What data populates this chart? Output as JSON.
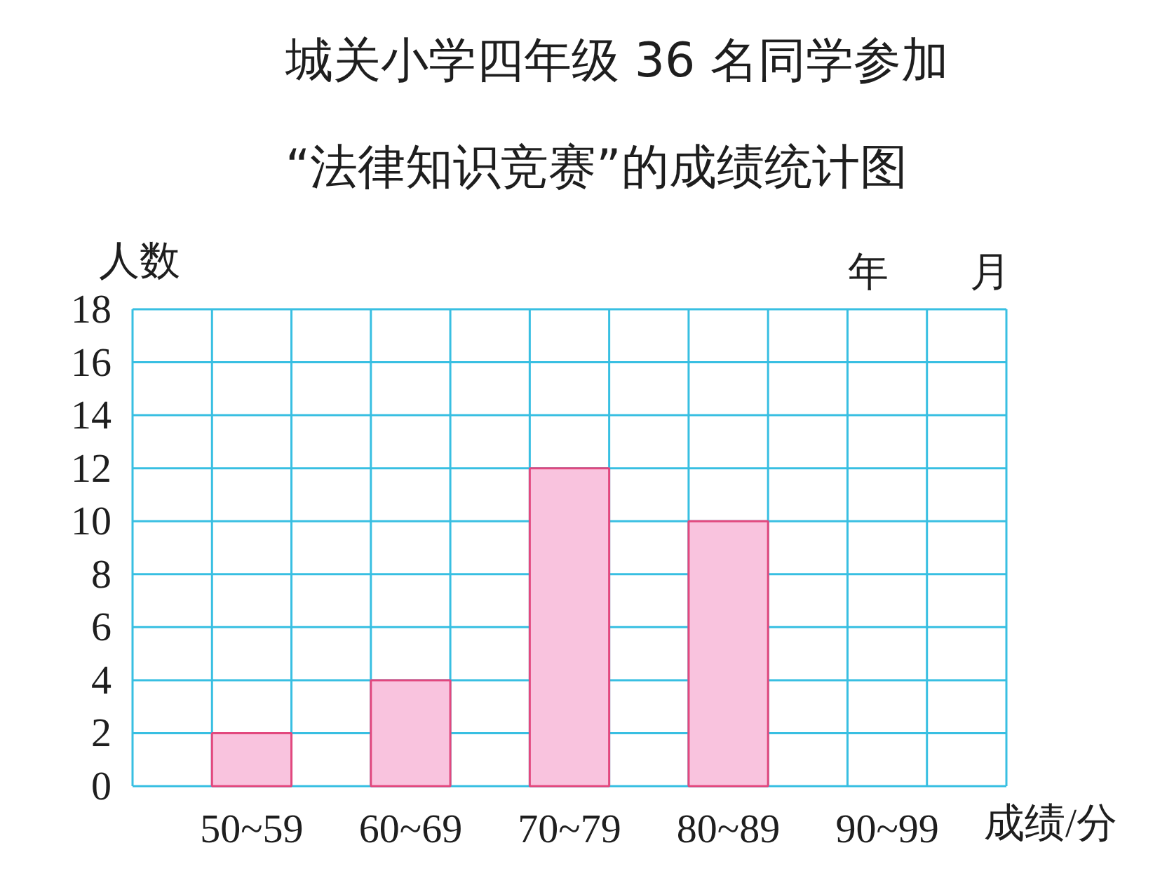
{
  "chart_data": {
    "type": "bar",
    "title": "城关小学四年级 36 名同学参加\n“法律知识竞赛”的成绩统计图",
    "xlabel": "成绩/分",
    "ylabel": "人数",
    "categories": [
      "50~59",
      "60~69",
      "70~79",
      "80~89",
      "90~99"
    ],
    "values": [
      2,
      4,
      12,
      10,
      null
    ],
    "color": "#f9c3de",
    "ylim": [
      0,
      18
    ],
    "yticks": [
      0,
      2,
      4,
      6,
      8,
      10,
      12,
      14,
      16,
      18
    ],
    "grid": true,
    "annotations": [
      "年　　月"
    ]
  }
}
